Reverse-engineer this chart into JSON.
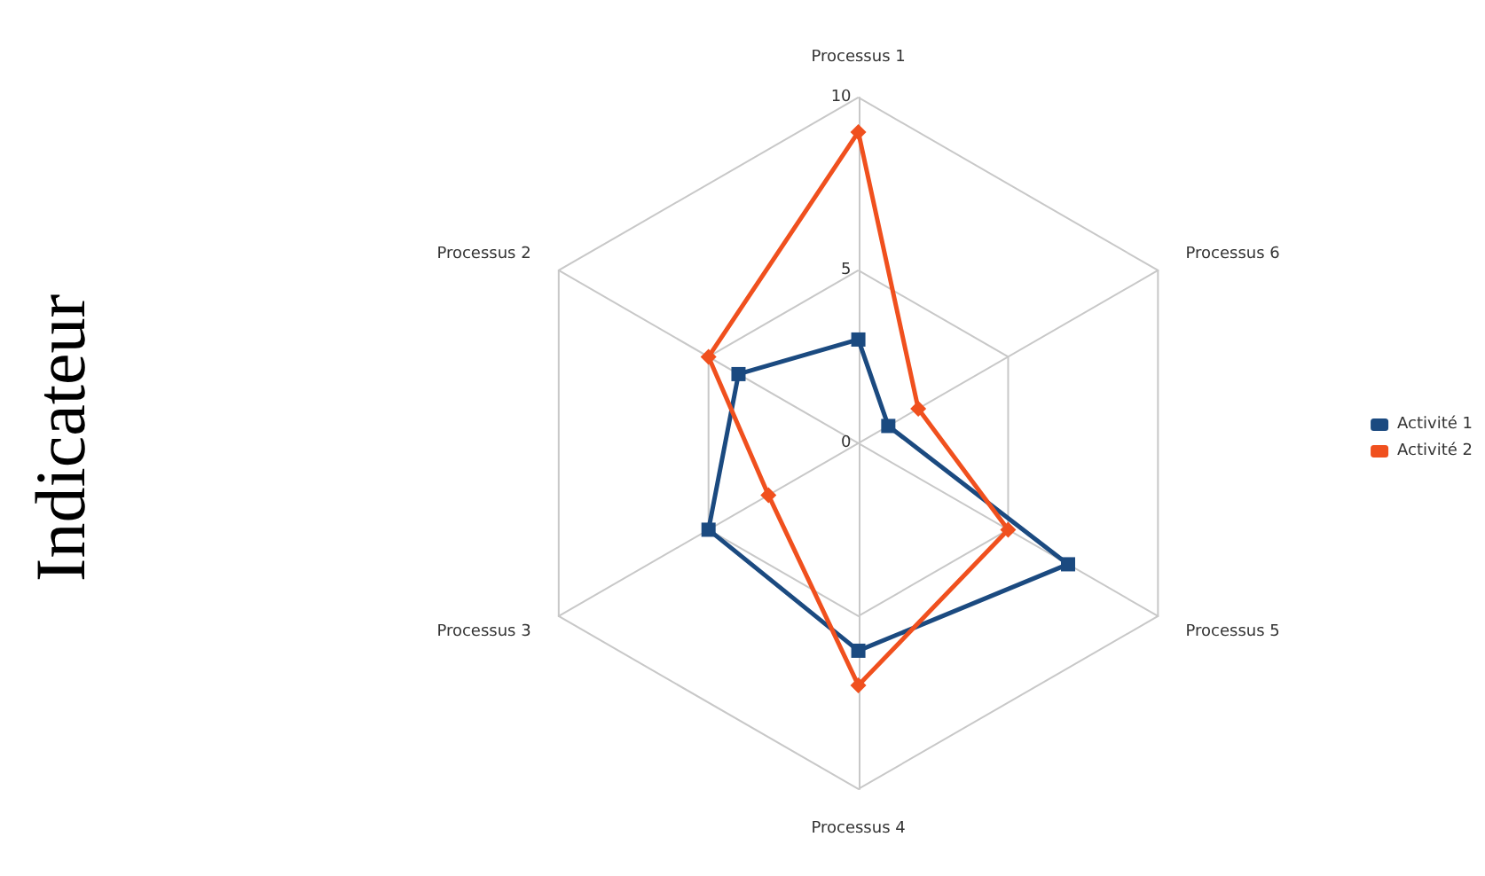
{
  "chart_data": {
    "type": "radar",
    "ylabel": "Indicateur",
    "categories": [
      "Processus 1",
      "Processus 6",
      "Processus 5",
      "Processus 4",
      "Processus 3",
      "Processus 2"
    ],
    "series": [
      {
        "name": "Activité 1",
        "color": "#1b4a80",
        "marker": "square",
        "values": [
          3,
          1,
          7,
          6,
          5,
          4
        ]
      },
      {
        "name": "Activité 2",
        "color": "#f0501e",
        "marker": "diamond",
        "values": [
          9,
          2,
          5,
          7,
          3,
          5
        ]
      }
    ],
    "ylim": [
      0,
      10
    ],
    "yticks": [
      0,
      5,
      10
    ],
    "grid": true,
    "legend": "right"
  }
}
